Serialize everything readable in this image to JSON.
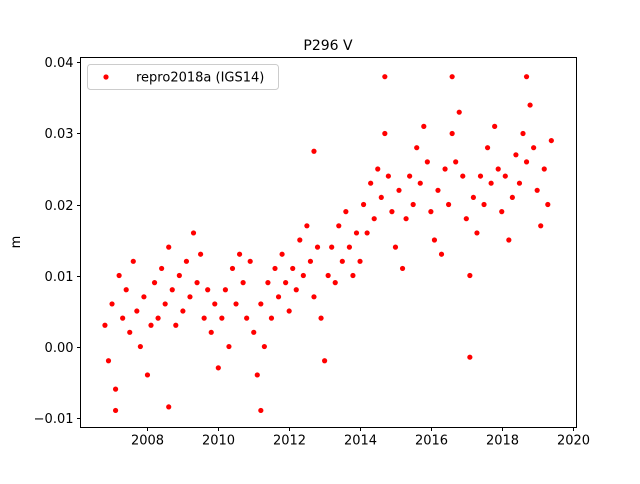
{
  "chart_data": {
    "type": "scatter",
    "title": "P296 V",
    "xlabel": "",
    "ylabel": "m",
    "xlim": [
      2006.11,
      2020.11
    ],
    "ylim": [
      -0.0114,
      0.0407
    ],
    "grid": false,
    "legend": {
      "placement": "top-left",
      "entries": [
        "repro2018a (IGS14)"
      ]
    },
    "xticks": [
      2008,
      2010,
      2012,
      2014,
      2016,
      2018,
      2020
    ],
    "xtick_labels": [
      "2008",
      "2010",
      "2012",
      "2014",
      "2016",
      "2018",
      "2020"
    ],
    "yticks": [
      -0.01,
      0.0,
      0.01,
      0.02,
      0.03,
      0.04
    ],
    "ytick_labels": [
      "−0.01",
      "0.00",
      "0.01",
      "0.02",
      "0.03",
      "0.04"
    ],
    "series": [
      {
        "name": "repro2018a (IGS14)",
        "color": "#ff0000",
        "marker": "o",
        "points": [
          [
            2006.8,
            0.003
          ],
          [
            2006.9,
            -0.002
          ],
          [
            2007.0,
            0.006
          ],
          [
            2007.1,
            -0.006
          ],
          [
            2007.2,
            0.01
          ],
          [
            2007.3,
            0.004
          ],
          [
            2007.4,
            0.008
          ],
          [
            2007.5,
            0.002
          ],
          [
            2007.6,
            0.012
          ],
          [
            2007.7,
            0.005
          ],
          [
            2007.8,
            0.0
          ],
          [
            2007.9,
            0.007
          ],
          [
            2008.0,
            -0.004
          ],
          [
            2008.1,
            0.003
          ],
          [
            2008.2,
            0.009
          ],
          [
            2008.3,
            0.004
          ],
          [
            2008.4,
            0.011
          ],
          [
            2008.5,
            0.006
          ],
          [
            2008.6,
            0.014
          ],
          [
            2008.7,
            0.008
          ],
          [
            2008.8,
            0.003
          ],
          [
            2008.9,
            0.01
          ],
          [
            2009.0,
            0.005
          ],
          [
            2009.1,
            0.012
          ],
          [
            2009.2,
            0.007
          ],
          [
            2009.3,
            0.016
          ],
          [
            2009.4,
            0.009
          ],
          [
            2009.5,
            0.013
          ],
          [
            2009.6,
            0.004
          ],
          [
            2009.7,
            0.008
          ],
          [
            2009.8,
            0.002
          ],
          [
            2009.9,
            0.006
          ],
          [
            2010.0,
            -0.003
          ],
          [
            2010.1,
            0.004
          ],
          [
            2010.2,
            0.008
          ],
          [
            2010.3,
            0.0
          ],
          [
            2010.4,
            0.011
          ],
          [
            2010.5,
            0.006
          ],
          [
            2010.6,
            0.013
          ],
          [
            2010.7,
            0.009
          ],
          [
            2010.8,
            0.004
          ],
          [
            2010.9,
            0.012
          ],
          [
            2011.0,
            0.002
          ],
          [
            2011.1,
            -0.004
          ],
          [
            2011.2,
            0.006
          ],
          [
            2011.3,
            0.0
          ],
          [
            2011.4,
            0.009
          ],
          [
            2011.5,
            0.004
          ],
          [
            2011.6,
            0.011
          ],
          [
            2011.7,
            0.007
          ],
          [
            2011.8,
            0.013
          ],
          [
            2011.9,
            0.009
          ],
          [
            2012.0,
            0.005
          ],
          [
            2012.1,
            0.011
          ],
          [
            2012.2,
            0.008
          ],
          [
            2012.3,
            0.015
          ],
          [
            2012.4,
            0.01
          ],
          [
            2012.5,
            0.017
          ],
          [
            2012.6,
            0.012
          ],
          [
            2012.7,
            0.007
          ],
          [
            2012.8,
            0.014
          ],
          [
            2012.9,
            0.004
          ],
          [
            2013.0,
            -0.002
          ],
          [
            2013.1,
            0.01
          ],
          [
            2013.2,
            0.014
          ],
          [
            2013.3,
            0.009
          ],
          [
            2013.4,
            0.017
          ],
          [
            2013.5,
            0.012
          ],
          [
            2013.6,
            0.019
          ],
          [
            2013.7,
            0.014
          ],
          [
            2013.8,
            0.01
          ],
          [
            2013.9,
            0.016
          ],
          [
            2014.0,
            0.012
          ],
          [
            2014.1,
            0.02
          ],
          [
            2014.2,
            0.016
          ],
          [
            2014.3,
            0.023
          ],
          [
            2014.4,
            0.018
          ],
          [
            2014.5,
            0.025
          ],
          [
            2014.6,
            0.021
          ],
          [
            2014.7,
            0.03
          ],
          [
            2014.8,
            0.024
          ],
          [
            2014.9,
            0.019
          ],
          [
            2015.0,
            0.014
          ],
          [
            2015.1,
            0.022
          ],
          [
            2015.2,
            0.011
          ],
          [
            2015.3,
            0.018
          ],
          [
            2015.4,
            0.024
          ],
          [
            2015.5,
            0.02
          ],
          [
            2015.6,
            0.028
          ],
          [
            2015.7,
            0.023
          ],
          [
            2015.8,
            0.031
          ],
          [
            2015.9,
            0.026
          ],
          [
            2016.0,
            0.019
          ],
          [
            2016.1,
            0.015
          ],
          [
            2016.2,
            0.022
          ],
          [
            2016.3,
            0.013
          ],
          [
            2016.4,
            0.025
          ],
          [
            2016.5,
            0.02
          ],
          [
            2016.6,
            0.03
          ],
          [
            2016.7,
            0.026
          ],
          [
            2016.8,
            0.033
          ],
          [
            2016.9,
            0.024
          ],
          [
            2017.0,
            0.018
          ],
          [
            2017.1,
            0.01
          ],
          [
            2017.2,
            0.021
          ],
          [
            2017.3,
            0.016
          ],
          [
            2017.4,
            0.024
          ],
          [
            2017.5,
            0.02
          ],
          [
            2017.6,
            0.028
          ],
          [
            2017.7,
            0.023
          ],
          [
            2017.8,
            0.031
          ],
          [
            2017.9,
            0.025
          ],
          [
            2018.0,
            0.019
          ],
          [
            2018.1,
            0.024
          ],
          [
            2018.2,
            0.015
          ],
          [
            2018.3,
            0.021
          ],
          [
            2018.4,
            0.027
          ],
          [
            2018.5,
            0.023
          ],
          [
            2018.6,
            0.03
          ],
          [
            2018.7,
            0.026
          ],
          [
            2018.8,
            0.034
          ],
          [
            2018.9,
            0.028
          ],
          [
            2019.0,
            0.022
          ],
          [
            2019.1,
            0.017
          ],
          [
            2019.2,
            0.025
          ],
          [
            2019.3,
            0.02
          ],
          [
            2019.4,
            0.029
          ],
          [
            2014.7,
            0.038
          ],
          [
            2017.1,
            -0.0015
          ],
          [
            2011.2,
            -0.009
          ],
          [
            2007.1,
            -0.009
          ],
          [
            2016.6,
            0.038
          ],
          [
            2008.6,
            -0.0085
          ],
          [
            2012.7,
            0.0275
          ],
          [
            2018.7,
            0.038
          ]
        ]
      }
    ]
  }
}
